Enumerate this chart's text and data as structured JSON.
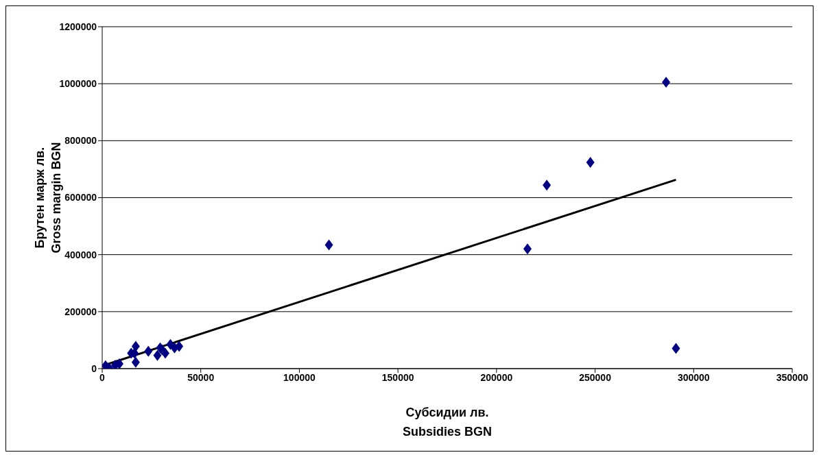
{
  "chart_data": {
    "type": "scatter",
    "xlabel": "Субсидии лв.\nSubsidies BGN",
    "ylabel": "Брутен марж лв.\nGross margin BGN",
    "xlim": [
      0,
      350000
    ],
    "xticks": [
      0,
      50000,
      100000,
      150000,
      200000,
      250000,
      300000,
      350000
    ],
    "ylim": [
      0,
      1200000
    ],
    "yticks": [
      0,
      200000,
      400000,
      600000,
      800000,
      1000000,
      1200000
    ],
    "grid": "y",
    "marker": "diamond",
    "series": [
      {
        "color": "#000080",
        "x": [
          1700,
          3500,
          6600,
          8700,
          17000,
          16400,
          17000,
          14700,
          23400,
          28000,
          29400,
          30400,
          32000,
          34600,
          36700,
          39000,
          115000,
          215700,
          225500,
          247600,
          286000,
          291000
        ],
        "values": [
          10000,
          2000,
          12000,
          17000,
          78000,
          54000,
          22000,
          54000,
          61000,
          46000,
          73000,
          66000,
          54000,
          85000,
          73000,
          78000,
          434000,
          420000,
          644000,
          724000,
          1005000,
          71000
        ]
      },
      {
        "type": "line",
        "color": "#000000",
        "marker": "none",
        "line_style": "solid",
        "x": [
          2400,
          291000
        ],
        "values": [
          15000,
          663000
        ]
      }
    ]
  }
}
